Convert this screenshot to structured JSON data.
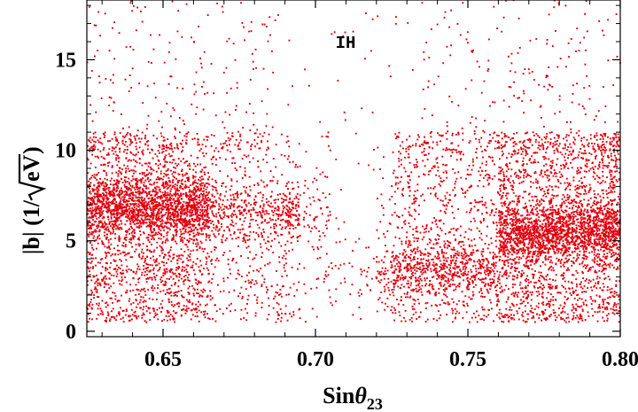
{
  "chart_data": {
    "type": "scatter",
    "title": "",
    "annotation": "IH",
    "xlabel": {
      "base": "Sin",
      "symbol": "θ",
      "sub": "23"
    },
    "ylabel": {
      "prefix": "|b| (1/",
      "radicand": "eV",
      "suffix": " )"
    },
    "xlim": [
      0.625,
      0.8
    ],
    "ylim": [
      -0.3,
      18.3
    ],
    "xticks": [
      0.65,
      0.7,
      0.75,
      0.8
    ],
    "xtick_labels": [
      "0.65",
      "0.70",
      "0.75",
      "0.80"
    ],
    "yticks": [
      0,
      5,
      10,
      15
    ],
    "ytick_labels": [
      "0",
      "5",
      "10",
      "15"
    ],
    "grid": false,
    "point_color": "#e0000d",
    "approximate_points": 9000,
    "density_regions": [
      {
        "x": [
          0.625,
          0.665
        ],
        "y": [
          0.5,
          11
        ],
        "weight": 0.34,
        "peak_y": 6.8
      },
      {
        "x": [
          0.665,
          0.705
        ],
        "y": [
          0.5,
          11
        ],
        "weight": 0.12,
        "peak_y": 6.5
      },
      {
        "x": [
          0.7,
          0.725
        ],
        "y": [
          0.5,
          10
        ],
        "weight": 0.04,
        "peak_y": 3
      },
      {
        "x": [
          0.725,
          0.76
        ],
        "y": [
          0.5,
          11
        ],
        "weight": 0.14,
        "peak_y": 3.5
      },
      {
        "x": [
          0.76,
          0.8
        ],
        "y": [
          0.5,
          11
        ],
        "weight": 0.36,
        "peak_y": 5.5
      }
    ],
    "sparse_region": {
      "x": [
        0.625,
        0.8
      ],
      "y": [
        10,
        18.3
      ],
      "weight": 0.07
    }
  }
}
